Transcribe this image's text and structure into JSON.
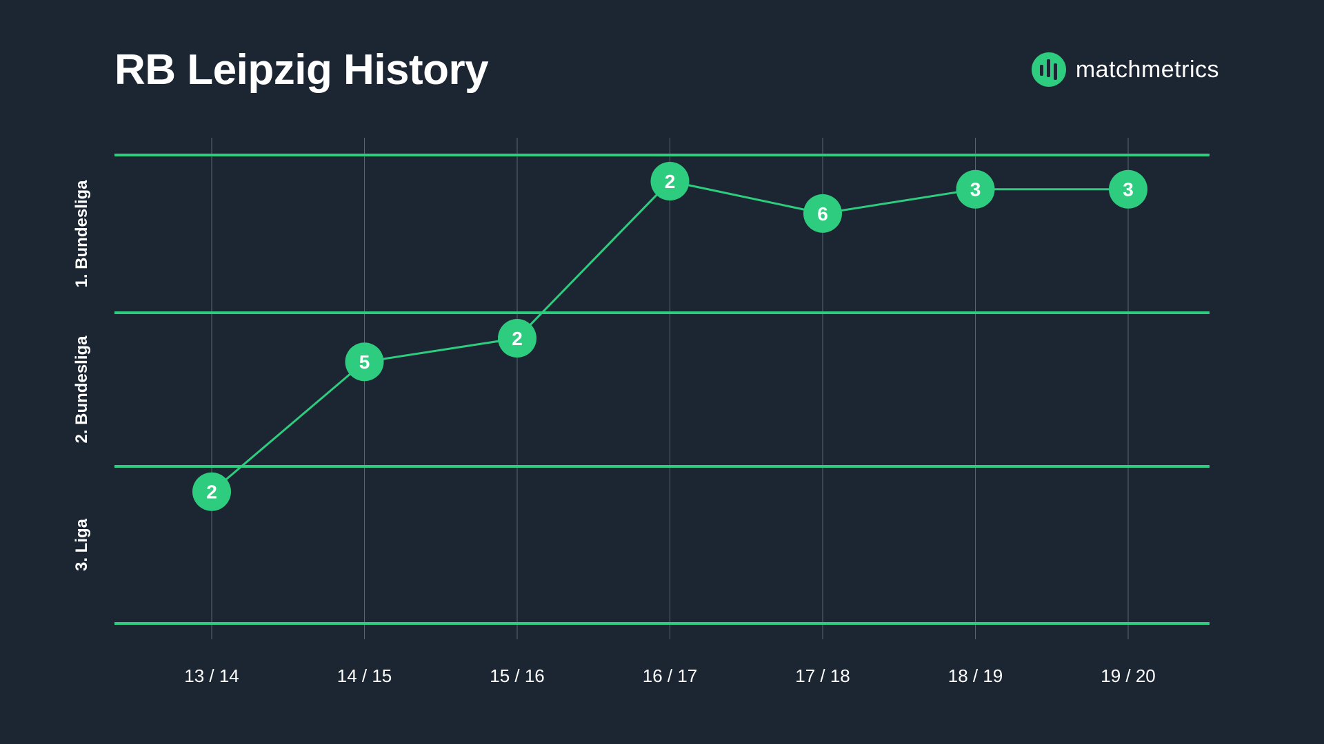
{
  "header": {
    "title": "RB Leipzig History",
    "brand_name": "matchmetrics",
    "brand_icon": "matchmetrics-logo-icon"
  },
  "colors": {
    "background": "#1c2633",
    "accent": "#2ecc7e",
    "grid": "#5b6470",
    "text": "#ffffff"
  },
  "chart_data": {
    "type": "line",
    "title": "RB Leipzig History",
    "categories": [
      "13 / 14",
      "14 / 15",
      "15 / 16",
      "16 / 17",
      "17 / 18",
      "18 / 19",
      "19 / 20"
    ],
    "leagues": [
      "1. Bundesliga",
      "2. Bundesliga",
      "3. Liga"
    ],
    "series": [
      {
        "league": [
          "3. Liga",
          "2. Bundesliga",
          "2. Bundesliga",
          "1. Bundesliga",
          "1. Bundesliga",
          "1. Bundesliga",
          "1. Bundesliga"
        ],
        "position": [
          2,
          5,
          2,
          2,
          6,
          3,
          3
        ]
      }
    ],
    "legend": "none",
    "grid": true
  }
}
